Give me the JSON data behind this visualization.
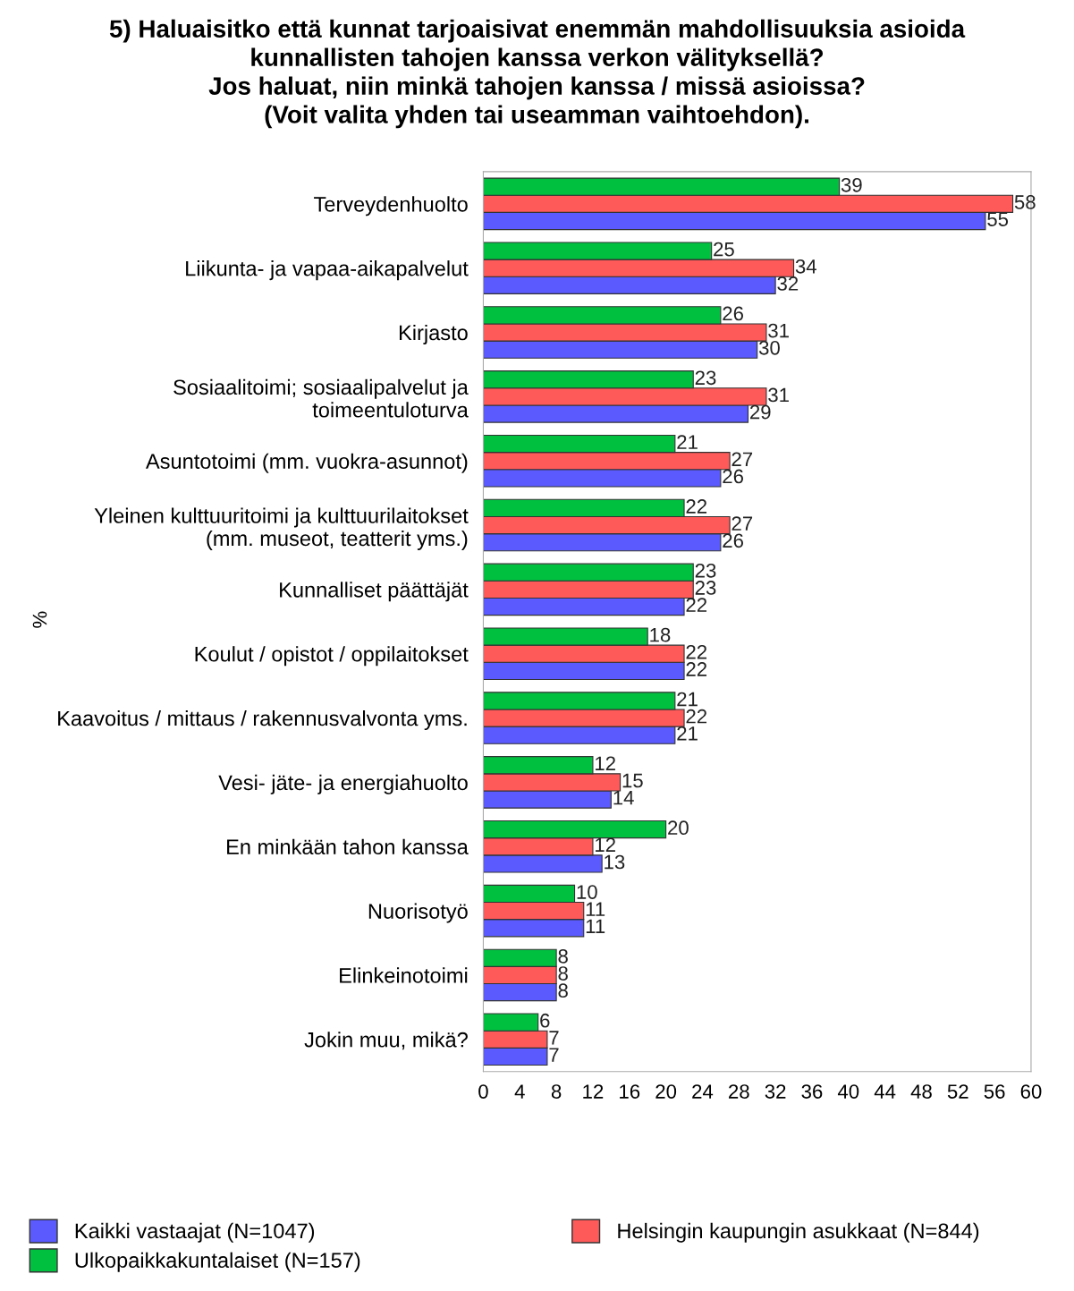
{
  "chart_data": {
    "type": "bar",
    "orientation": "horizontal",
    "title": "5) Haluaisitko että kunnat tarjoaisivat enemmän mahdollisuuksia asioida\nkunnallisten tahojen kanssa verkon välityksellä?\nJos haluat, niin minkä tahojen kanssa / missä asioissa?\n(Voit valita yhden tai useamman vaihtoehdon).",
    "ylabel": "%",
    "categories": [
      "Terveydenhuolto",
      "Liikunta- ja vapaa-aikapalvelut",
      "Kirjasto",
      "Sosiaalitoimi; sosiaalipalvelut ja\ntoimeentuloturva",
      "Asuntotoimi (mm. vuokra-asunnot)",
      "Yleinen kulttuuritoimi ja kulttuurilaitokset\n(mm. museot, teatterit yms.)",
      "Kunnalliset päättäjät",
      "Koulut / opistot / oppilaitokset",
      "Kaavoitus / mittaus / rakennusvalvonta yms.",
      "Vesi- jäte- ja energiahuolto",
      "En minkään tahon kanssa",
      "Nuorisotyö",
      "Elinkeinotoimi",
      "Jokin muu, mikä?"
    ],
    "series": [
      {
        "name": "Kaikki vastaajat (N=1047)",
        "color": "#5a5aff",
        "values": [
          55,
          32,
          30,
          29,
          26,
          26,
          22,
          22,
          21,
          14,
          13,
          11,
          8,
          7
        ]
      },
      {
        "name": "Helsingin kaupungin asukkaat (N=844)",
        "color": "#ff5a5a",
        "values": [
          58,
          34,
          31,
          31,
          27,
          27,
          23,
          22,
          22,
          15,
          12,
          11,
          8,
          7
        ]
      },
      {
        "name": "Ulkopaikkakuntalaiset (N=157)",
        "color": "#00c040",
        "values": [
          39,
          25,
          26,
          23,
          21,
          22,
          23,
          18,
          21,
          12,
          20,
          10,
          8,
          6
        ]
      }
    ],
    "xlim": [
      0,
      60
    ],
    "xticks": [
      0,
      4,
      8,
      12,
      16,
      20,
      24,
      28,
      32,
      36,
      40,
      44,
      48,
      52,
      56,
      60
    ],
    "data_labels": true,
    "grid": false,
    "legend": "bottom"
  }
}
